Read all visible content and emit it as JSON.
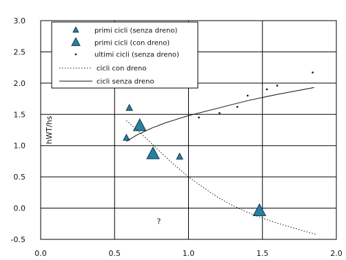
{
  "chart_data": {
    "type": "scatter",
    "xlim": [
      0.0,
      2.0
    ],
    "ylim": [
      -0.5,
      3.0
    ],
    "x_ticks": [
      "0.0",
      "0.5",
      "1.0",
      "1.5",
      "2.0"
    ],
    "y_ticks": [
      "-0.5",
      "0.0",
      "0.5",
      "1.0",
      "1.5",
      "2.0",
      "2.5",
      "3.0"
    ],
    "ylabel": "hWT/hs",
    "grid": true,
    "legend_position": "top-left",
    "annotation": {
      "text": "?",
      "x": 0.8,
      "y": -0.25
    },
    "series": [
      {
        "name": "primi cicli (senza dreno)",
        "kind": "triangle-small",
        "color": "#2a7f9e",
        "points": [
          [
            0.58,
            1.12
          ],
          [
            0.6,
            1.6
          ],
          [
            0.94,
            0.82
          ]
        ]
      },
      {
        "name": "primi cicli (con dreno)",
        "kind": "triangle-large",
        "color": "#2a7f9e",
        "points": [
          [
            0.67,
            1.31
          ],
          [
            0.76,
            0.86
          ],
          [
            1.48,
            -0.05
          ]
        ]
      },
      {
        "name": "ultimi cicli (senza dreno)",
        "kind": "dot",
        "color": "#111111",
        "points": [
          [
            1.07,
            1.45
          ],
          [
            1.21,
            1.52
          ],
          [
            1.33,
            1.62
          ],
          [
            1.4,
            1.8
          ],
          [
            1.53,
            1.9
          ],
          [
            1.6,
            1.96
          ],
          [
            1.84,
            2.17
          ]
        ]
      },
      {
        "name": "cicli con dreno",
        "kind": "dotted-line",
        "color": "#111111",
        "points": [
          [
            0.58,
            1.4
          ],
          [
            0.7,
            1.15
          ],
          [
            0.8,
            0.92
          ],
          [
            0.9,
            0.7
          ],
          [
            1.0,
            0.5
          ],
          [
            1.1,
            0.33
          ],
          [
            1.2,
            0.17
          ],
          [
            1.3,
            0.04
          ],
          [
            1.4,
            -0.07
          ],
          [
            1.5,
            -0.16
          ],
          [
            1.6,
            -0.24
          ],
          [
            1.7,
            -0.31
          ],
          [
            1.86,
            -0.42
          ]
        ]
      },
      {
        "name": "cicli senza dreno",
        "kind": "solid-line",
        "color": "#111111",
        "points": [
          [
            0.58,
            1.07
          ],
          [
            0.65,
            1.17
          ],
          [
            0.75,
            1.28
          ],
          [
            0.85,
            1.37
          ],
          [
            1.0,
            1.48
          ],
          [
            1.2,
            1.6
          ],
          [
            1.4,
            1.72
          ],
          [
            1.6,
            1.82
          ],
          [
            1.85,
            1.93
          ]
        ]
      }
    ]
  }
}
